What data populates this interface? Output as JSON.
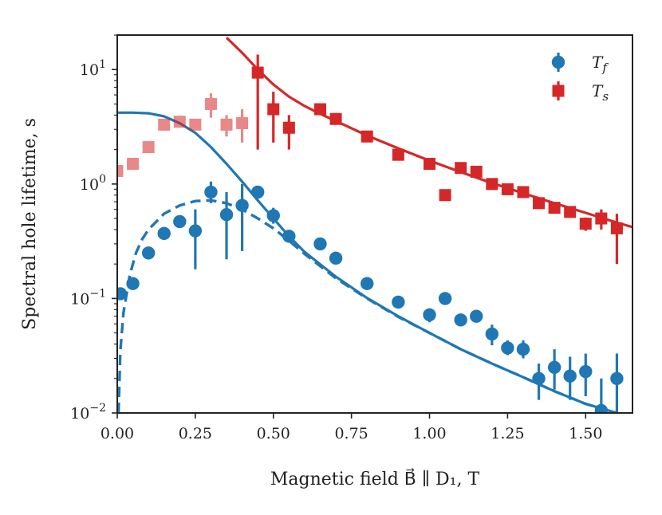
{
  "chart_data": {
    "type": "scatter",
    "xlabel": "Magnetic field B⃗ ∥ D₁, T",
    "ylabel": "Spectral hole lifetime, s",
    "xlim": [
      0.0,
      1.65
    ],
    "ylim": [
      0.01,
      20
    ],
    "yscale": "log",
    "x_ticks": [
      "0.00",
      "0.25",
      "0.50",
      "0.75",
      "1.00",
      "1.25",
      "1.50"
    ],
    "x_tick_values": [
      0.0,
      0.25,
      0.5,
      0.75,
      1.0,
      1.25,
      1.5
    ],
    "y_ticks": [
      {
        "value": 10,
        "base": "10",
        "exp": "1"
      },
      {
        "value": 1,
        "base": "10",
        "exp": "0"
      },
      {
        "value": 0.1,
        "base": "10",
        "exp": "−1"
      },
      {
        "value": 0.01,
        "base": "10",
        "exp": "−2"
      }
    ],
    "legend_position": "top-right",
    "colors": {
      "blue": "#1f77b4",
      "red": "#d62728"
    },
    "series": [
      {
        "name": "Tf",
        "label_main": "T",
        "label_sub": "f",
        "marker": "circle",
        "color": "#1f77b4",
        "points": [
          [
            0.01,
            0.11,
            0.1,
            0.125
          ],
          [
            0.05,
            0.135,
            0.125,
            0.145
          ],
          [
            0.1,
            0.25,
            0.23,
            0.27
          ],
          [
            0.15,
            0.37,
            0.34,
            0.4
          ],
          [
            0.2,
            0.47,
            0.43,
            0.51
          ],
          [
            0.25,
            0.39,
            0.18,
            0.6
          ],
          [
            0.3,
            0.85,
            0.68,
            1.05
          ],
          [
            0.35,
            0.54,
            0.22,
            0.85
          ],
          [
            0.4,
            0.65,
            0.26,
            1.0
          ],
          [
            0.45,
            0.85,
            0.8,
            0.9
          ],
          [
            0.5,
            0.53,
            0.45,
            0.62
          ],
          [
            0.55,
            0.35,
            0.31,
            0.39
          ],
          [
            0.65,
            0.3,
            0.27,
            0.33
          ],
          [
            0.7,
            0.225,
            0.205,
            0.245
          ],
          [
            0.8,
            0.135,
            0.125,
            0.145
          ],
          [
            0.9,
            0.093,
            0.087,
            0.099
          ],
          [
            1.0,
            0.072,
            0.062,
            0.082
          ],
          [
            1.05,
            0.1,
            0.094,
            0.106
          ],
          [
            1.1,
            0.065,
            0.06,
            0.07
          ],
          [
            1.15,
            0.07,
            0.064,
            0.076
          ],
          [
            1.2,
            0.049,
            0.039,
            0.059
          ],
          [
            1.25,
            0.037,
            0.032,
            0.043
          ],
          [
            1.3,
            0.036,
            0.03,
            0.043
          ],
          [
            1.35,
            0.02,
            0.013,
            0.027
          ],
          [
            1.4,
            0.025,
            0.016,
            0.036
          ],
          [
            1.45,
            0.021,
            0.013,
            0.031
          ],
          [
            1.5,
            0.023,
            0.014,
            0.033
          ],
          [
            1.55,
            0.0105,
            0.009,
            0.02
          ],
          [
            1.6,
            0.02,
            0.01,
            0.033
          ]
        ],
        "fit_solid": [
          [
            0.0,
            4.2
          ],
          [
            0.05,
            4.2
          ],
          [
            0.1,
            4.15
          ],
          [
            0.15,
            3.9
          ],
          [
            0.2,
            3.4
          ],
          [
            0.25,
            2.8
          ],
          [
            0.3,
            2.1
          ],
          [
            0.35,
            1.5
          ],
          [
            0.4,
            1.05
          ],
          [
            0.45,
            0.72
          ],
          [
            0.5,
            0.5
          ],
          [
            0.55,
            0.35
          ],
          [
            0.6,
            0.255
          ],
          [
            0.7,
            0.155
          ],
          [
            0.8,
            0.101
          ],
          [
            0.9,
            0.07
          ],
          [
            1.0,
            0.05
          ],
          [
            1.1,
            0.036
          ],
          [
            1.2,
            0.027
          ],
          [
            1.3,
            0.0205
          ],
          [
            1.4,
            0.0155
          ],
          [
            1.5,
            0.012
          ],
          [
            1.6,
            0.01
          ]
        ],
        "fit_dashed": [
          [
            0.004,
            0.01
          ],
          [
            0.01,
            0.035
          ],
          [
            0.02,
            0.075
          ],
          [
            0.04,
            0.16
          ],
          [
            0.06,
            0.25
          ],
          [
            0.08,
            0.33
          ],
          [
            0.1,
            0.4
          ],
          [
            0.15,
            0.55
          ],
          [
            0.2,
            0.65
          ],
          [
            0.25,
            0.71
          ],
          [
            0.3,
            0.72
          ],
          [
            0.35,
            0.68
          ],
          [
            0.4,
            0.6
          ],
          [
            0.45,
            0.5
          ],
          [
            0.5,
            0.41
          ],
          [
            0.55,
            0.32
          ],
          [
            0.6,
            0.245
          ],
          [
            0.7,
            0.15
          ],
          [
            0.8,
            0.1
          ],
          [
            0.9,
            0.069
          ],
          [
            1.0,
            0.05
          ],
          [
            1.1,
            0.036
          ],
          [
            1.2,
            0.027
          ],
          [
            1.3,
            0.0205
          ],
          [
            1.4,
            0.0155
          ],
          [
            1.5,
            0.012
          ],
          [
            1.6,
            0.01
          ]
        ]
      },
      {
        "name": "Ts",
        "label_main": "T",
        "label_sub": "s",
        "marker": "square",
        "color": "#d62728",
        "points": [
          [
            0.0,
            1.3,
            1.2,
            1.4,
            1
          ],
          [
            0.05,
            1.5,
            1.4,
            1.6,
            1
          ],
          [
            0.1,
            2.1,
            1.95,
            2.25,
            1
          ],
          [
            0.15,
            3.3,
            3.0,
            3.6,
            1
          ],
          [
            0.2,
            3.5,
            3.2,
            3.8,
            1
          ],
          [
            0.25,
            3.3,
            3.0,
            3.6,
            1
          ],
          [
            0.3,
            5.0,
            3.8,
            6.2,
            1
          ],
          [
            0.35,
            3.3,
            2.6,
            4.0,
            1
          ],
          [
            0.4,
            3.4,
            2.3,
            4.5,
            1
          ],
          [
            0.45,
            9.4,
            2.0,
            13.5,
            0
          ],
          [
            0.5,
            4.5,
            2.3,
            6.4,
            0
          ],
          [
            0.55,
            3.1,
            2.0,
            4.0,
            0
          ],
          [
            0.65,
            4.5,
            4.2,
            4.8,
            0
          ],
          [
            0.7,
            3.7,
            3.3,
            4.1,
            0
          ],
          [
            0.8,
            2.6,
            2.45,
            2.75,
            0
          ],
          [
            0.9,
            1.8,
            1.65,
            1.95,
            0
          ],
          [
            1.0,
            1.5,
            1.4,
            1.6,
            0
          ],
          [
            1.05,
            0.8,
            0.75,
            0.85,
            0
          ],
          [
            1.1,
            1.38,
            1.3,
            1.46,
            0
          ],
          [
            1.15,
            1.28,
            1.2,
            1.36,
            0
          ],
          [
            1.2,
            1.0,
            0.94,
            1.06,
            0
          ],
          [
            1.25,
            0.9,
            0.85,
            0.95,
            0
          ],
          [
            1.3,
            0.85,
            0.8,
            0.9,
            0
          ],
          [
            1.35,
            0.68,
            0.64,
            0.72,
            0
          ],
          [
            1.4,
            0.62,
            0.58,
            0.66,
            0
          ],
          [
            1.45,
            0.57,
            0.53,
            0.61,
            0
          ],
          [
            1.5,
            0.45,
            0.39,
            0.51,
            0
          ],
          [
            1.55,
            0.5,
            0.4,
            0.6,
            0
          ],
          [
            1.6,
            0.41,
            0.2,
            0.55,
            0
          ]
        ],
        "fit_solid": [
          [
            0.35,
            19.0
          ],
          [
            0.4,
            14.0
          ],
          [
            0.45,
            10.0
          ],
          [
            0.5,
            7.4
          ],
          [
            0.55,
            5.8
          ],
          [
            0.6,
            4.8
          ],
          [
            0.65,
            4.1
          ],
          [
            0.7,
            3.55
          ],
          [
            0.8,
            2.65
          ],
          [
            0.9,
            2.05
          ],
          [
            1.0,
            1.6
          ],
          [
            1.1,
            1.27
          ],
          [
            1.2,
            1.02
          ],
          [
            1.3,
            0.83
          ],
          [
            1.4,
            0.68
          ],
          [
            1.5,
            0.56
          ],
          [
            1.6,
            0.46
          ],
          [
            1.65,
            0.42
          ]
        ]
      }
    ]
  }
}
